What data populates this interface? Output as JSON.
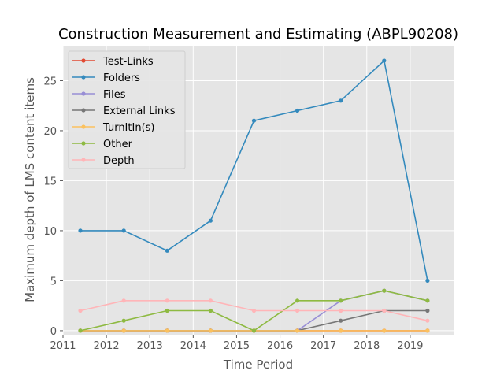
{
  "chart_data": {
    "type": "line",
    "title": "Construction Measurement and Estimating (ABPL90208)",
    "xlabel": "Time Period",
    "ylabel": "Maximum depth of LMS content items",
    "xlim": [
      2011.0,
      2020.0
    ],
    "ylim": [
      -0.4,
      28.5
    ],
    "x_ticks": [
      2011,
      2012,
      2013,
      2014,
      2015,
      2016,
      2017,
      2018,
      2019
    ],
    "y_ticks": [
      0,
      5,
      10,
      15,
      20,
      25
    ],
    "grid": true,
    "legend_position": "top-left",
    "x": [
      2011.4,
      2012.4,
      2013.4,
      2014.4,
      2015.4,
      2016.4,
      2017.4,
      2018.4,
      2019.4
    ],
    "series": [
      {
        "name": "Test-Links",
        "color": "#e24a33",
        "values": [
          0,
          0,
          0,
          0,
          0,
          0,
          0,
          0,
          0
        ]
      },
      {
        "name": "Folders",
        "color": "#348abd",
        "values": [
          10,
          10,
          8,
          11,
          21,
          22,
          23,
          27,
          5
        ]
      },
      {
        "name": "Files",
        "color": "#988ed5",
        "values": [
          0,
          0,
          0,
          0,
          0,
          0,
          3,
          4,
          3
        ]
      },
      {
        "name": "External Links",
        "color": "#777777",
        "values": [
          0,
          0,
          0,
          0,
          0,
          0,
          1,
          2,
          2
        ]
      },
      {
        "name": "TurnItIn(s)",
        "color": "#fbc15e",
        "values": [
          0,
          0,
          0,
          0,
          0,
          0,
          0,
          0,
          0
        ]
      },
      {
        "name": "Other",
        "color": "#8eba42",
        "values": [
          0,
          1,
          2,
          2,
          0,
          3,
          3,
          4,
          3
        ]
      },
      {
        "name": "Depth",
        "color": "#ffb5b8",
        "values": [
          2,
          3,
          3,
          3,
          2,
          2,
          2,
          2,
          1
        ]
      }
    ]
  }
}
